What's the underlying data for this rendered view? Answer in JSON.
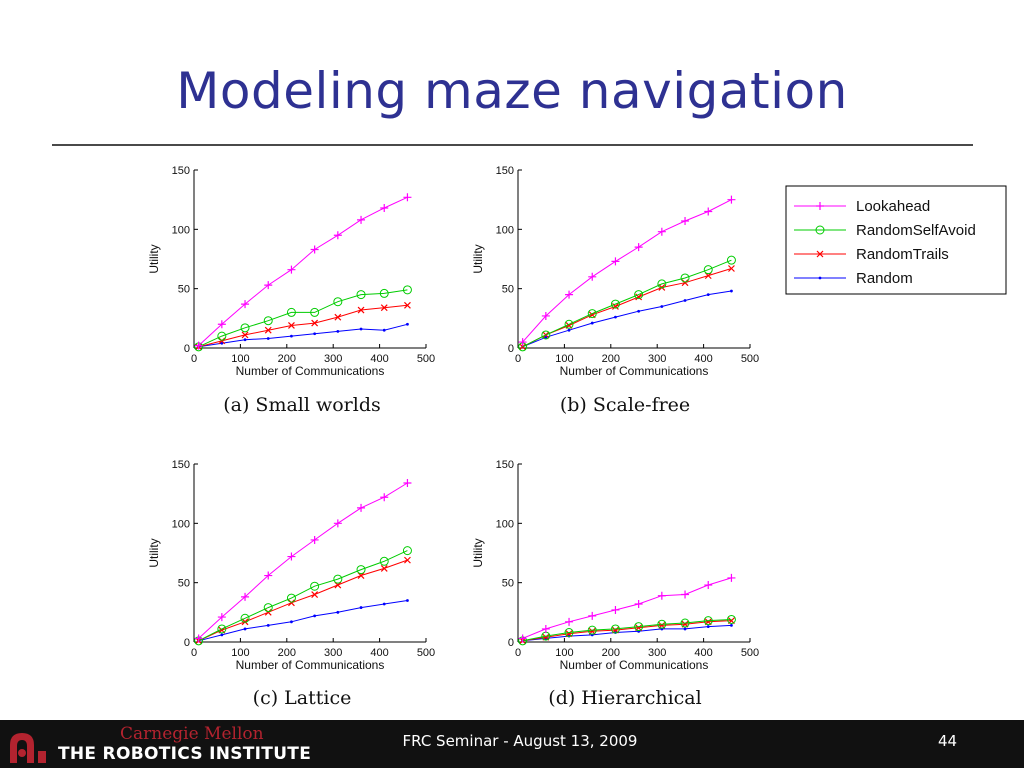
{
  "slide": {
    "title": "Modeling maze navigation"
  },
  "footer": {
    "org_line1": "Carnegie Mellon",
    "org_line2": "THE ROBOTICS INSTITUTE",
    "center_text": "FRC Seminar - August 13, 2009",
    "page_number": "44"
  },
  "legend": {
    "placement": "right of top-right subplot",
    "entries": [
      {
        "name": "Lookahead",
        "color": "#ff00ff",
        "marker": "plus"
      },
      {
        "name": "RandomSelfAvoid",
        "color": "#00cc00",
        "marker": "circle"
      },
      {
        "name": "RandomTrails",
        "color": "#ff0000",
        "marker": "x"
      },
      {
        "name": "Random",
        "color": "#0000ff",
        "marker": "dot"
      }
    ]
  },
  "colors": {
    "title": "#2e3192",
    "footer_bg": "#111111",
    "cmu_red": "#b3232f"
  },
  "chart_data": [
    {
      "type": "line",
      "caption": "(a) Small worlds",
      "xlabel": "Number of Communications",
      "ylabel": "Utility",
      "xlim": [
        0,
        500
      ],
      "ylim": [
        0,
        150
      ],
      "xticks": [
        0,
        100,
        200,
        300,
        400,
        500
      ],
      "yticks": [
        0,
        50,
        100,
        150
      ],
      "grid": false,
      "x": [
        10,
        60,
        110,
        160,
        210,
        260,
        310,
        360,
        410,
        460
      ],
      "series": [
        {
          "name": "Lookahead",
          "values": [
            2,
            20,
            37,
            53,
            66,
            83,
            95,
            108,
            118,
            127
          ]
        },
        {
          "name": "RandomSelfAvoid",
          "values": [
            1,
            10,
            17,
            23,
            30,
            30,
            39,
            45,
            46,
            49
          ]
        },
        {
          "name": "RandomTrails",
          "values": [
            1,
            6,
            11,
            15,
            19,
            21,
            26,
            32,
            34,
            36
          ]
        },
        {
          "name": "Random",
          "values": [
            1,
            4,
            7,
            8,
            10,
            12,
            14,
            16,
            15,
            20
          ]
        }
      ]
    },
    {
      "type": "line",
      "caption": "(b) Scale-free",
      "xlabel": "Number of Communications",
      "ylabel": "Utility",
      "xlim": [
        0,
        500
      ],
      "ylim": [
        0,
        150
      ],
      "xticks": [
        0,
        100,
        200,
        300,
        400,
        500
      ],
      "yticks": [
        0,
        50,
        100,
        150
      ],
      "grid": false,
      "x": [
        10,
        60,
        110,
        160,
        210,
        260,
        310,
        360,
        410,
        460
      ],
      "series": [
        {
          "name": "Lookahead",
          "values": [
            5,
            27,
            45,
            60,
            73,
            85,
            98,
            107,
            115,
            125
          ]
        },
        {
          "name": "RandomSelfAvoid",
          "values": [
            1,
            11,
            20,
            29,
            37,
            45,
            54,
            59,
            66,
            74
          ]
        },
        {
          "name": "RandomTrails",
          "values": [
            1,
            11,
            19,
            28,
            35,
            43,
            51,
            55,
            61,
            67
          ]
        },
        {
          "name": "Random",
          "values": [
            1,
            9,
            15,
            21,
            26,
            31,
            35,
            40,
            45,
            48
          ]
        }
      ]
    },
    {
      "type": "line",
      "caption": "(c) Lattice",
      "xlabel": "Number of Communications",
      "ylabel": "Utility",
      "xlim": [
        0,
        500
      ],
      "ylim": [
        0,
        150
      ],
      "xticks": [
        0,
        100,
        200,
        300,
        400,
        500
      ],
      "yticks": [
        0,
        50,
        100,
        150
      ],
      "grid": false,
      "x": [
        10,
        60,
        110,
        160,
        210,
        260,
        310,
        360,
        410,
        460
      ],
      "series": [
        {
          "name": "Lookahead",
          "values": [
            3,
            21,
            38,
            56,
            72,
            86,
            100,
            113,
            122,
            134
          ]
        },
        {
          "name": "RandomSelfAvoid",
          "values": [
            1,
            11,
            20,
            29,
            37,
            47,
            53,
            61,
            68,
            77
          ]
        },
        {
          "name": "RandomTrails",
          "values": [
            1,
            10,
            17,
            25,
            33,
            40,
            48,
            56,
            62,
            69
          ]
        },
        {
          "name": "Random",
          "values": [
            1,
            6,
            11,
            14,
            17,
            22,
            25,
            29,
            32,
            35
          ]
        }
      ]
    },
    {
      "type": "line",
      "caption": "(d) Hierarchical",
      "xlabel": "Number of Communications",
      "ylabel": "Utility",
      "xlim": [
        0,
        500
      ],
      "ylim": [
        0,
        150
      ],
      "xticks": [
        0,
        100,
        200,
        300,
        400,
        500
      ],
      "yticks": [
        0,
        50,
        100,
        150
      ],
      "grid": false,
      "x": [
        10,
        60,
        110,
        160,
        210,
        260,
        310,
        360,
        410,
        460
      ],
      "series": [
        {
          "name": "Lookahead",
          "values": [
            3,
            11,
            17,
            22,
            27,
            32,
            39,
            40,
            48,
            54
          ]
        },
        {
          "name": "RandomSelfAvoid",
          "values": [
            1,
            5,
            8,
            10,
            11,
            13,
            15,
            16,
            18,
            19
          ]
        },
        {
          "name": "RandomTrails",
          "values": [
            1,
            4,
            7,
            9,
            10,
            12,
            14,
            15,
            17,
            18
          ]
        },
        {
          "name": "Random",
          "values": [
            1,
            3,
            5,
            6,
            8,
            9,
            11,
            11,
            13,
            14
          ]
        }
      ]
    }
  ]
}
